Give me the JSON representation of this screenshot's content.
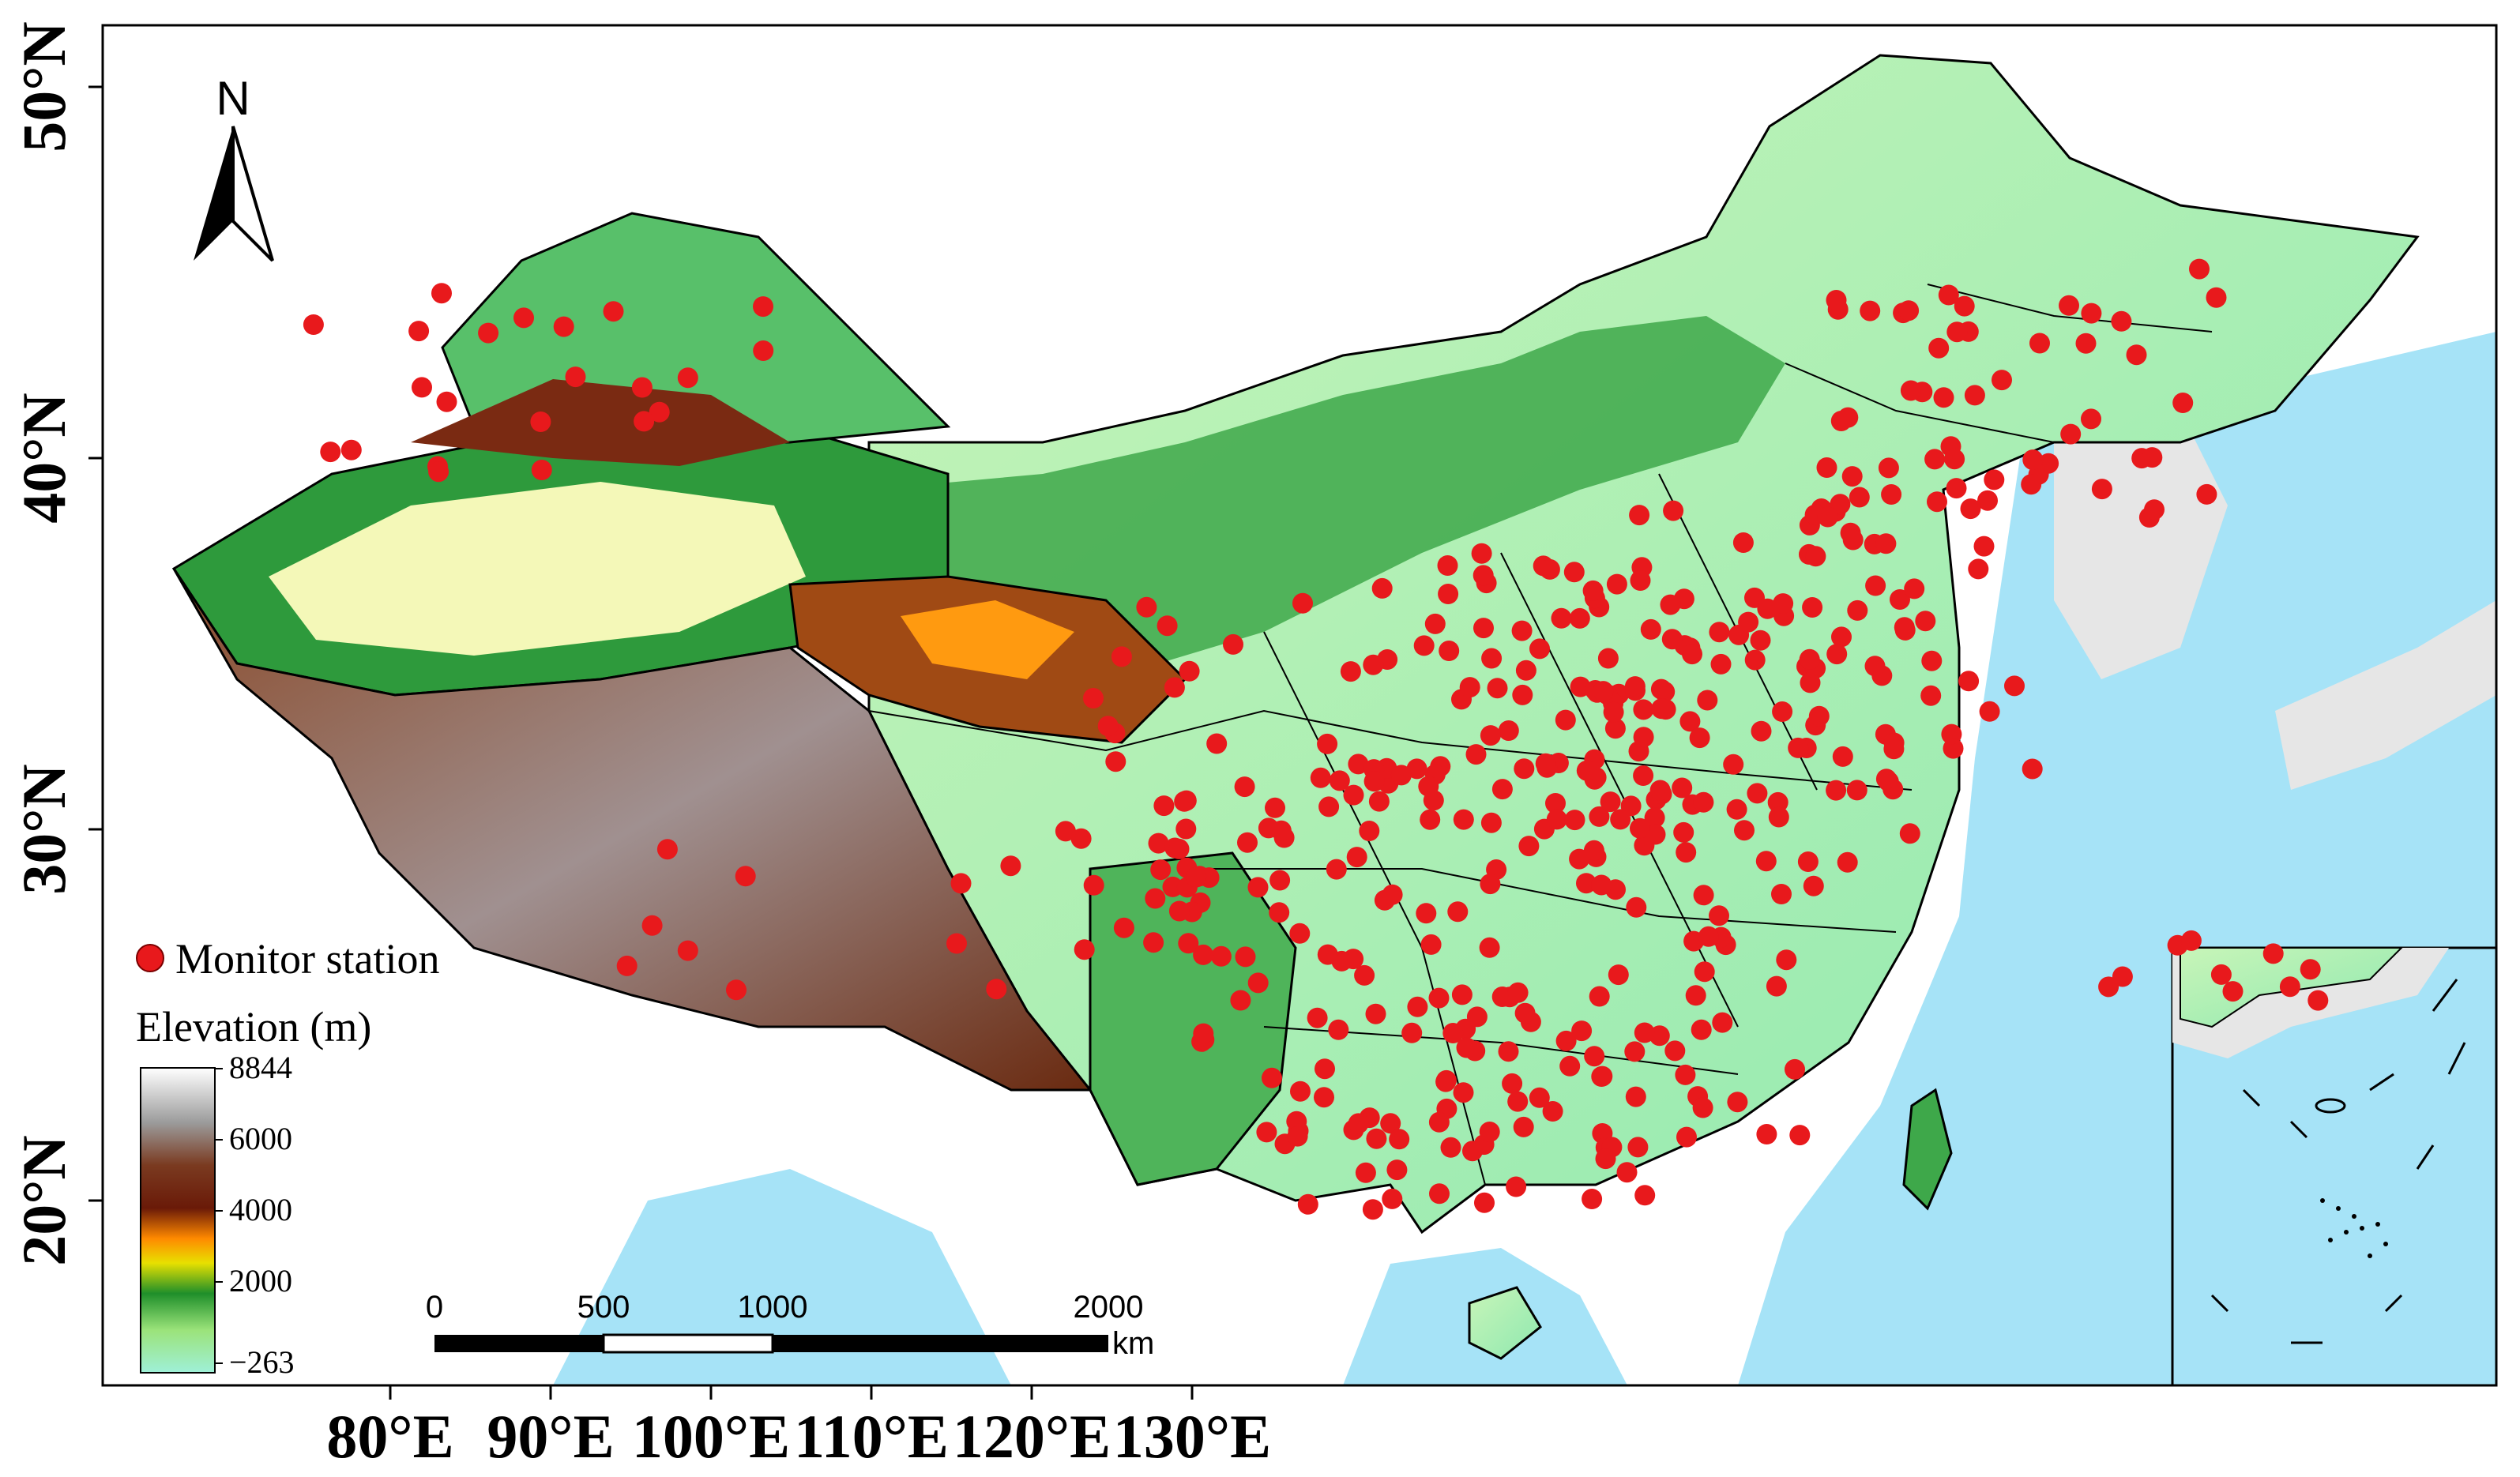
{
  "map": {
    "north_arrow_label": "N",
    "longitude_ticks": [
      {
        "deg": 80,
        "label": "80°E"
      },
      {
        "deg": 90,
        "label": "90°E"
      },
      {
        "deg": 100,
        "label": "100°E"
      },
      {
        "deg": 110,
        "label": "110°E"
      },
      {
        "deg": 120,
        "label": "120°E"
      },
      {
        "deg": 130,
        "label": "130°E"
      }
    ],
    "latitude_ticks": [
      {
        "deg": 50,
        "label": "50°N"
      },
      {
        "deg": 40,
        "label": "40°N"
      },
      {
        "deg": 30,
        "label": "30°N"
      },
      {
        "deg": 20,
        "label": "20°N"
      }
    ],
    "legend": {
      "station_label": "Monitor station",
      "elevation_title": "Elevation (m)",
      "elevation_ticks": [
        "8844",
        "6000",
        "4000",
        "2000",
        "−263"
      ]
    },
    "scale_bar": {
      "ticks": [
        "0",
        "500",
        "1000",
        "2000"
      ],
      "unit": "km"
    },
    "colors": {
      "station": "#e8191c",
      "sea": "#a6e3f7",
      "low_land": "#b8f0c8",
      "mid_green": "#2e9a3c",
      "high_brown": "#7a2a12",
      "peak_white": "#f5f5f5"
    }
  }
}
